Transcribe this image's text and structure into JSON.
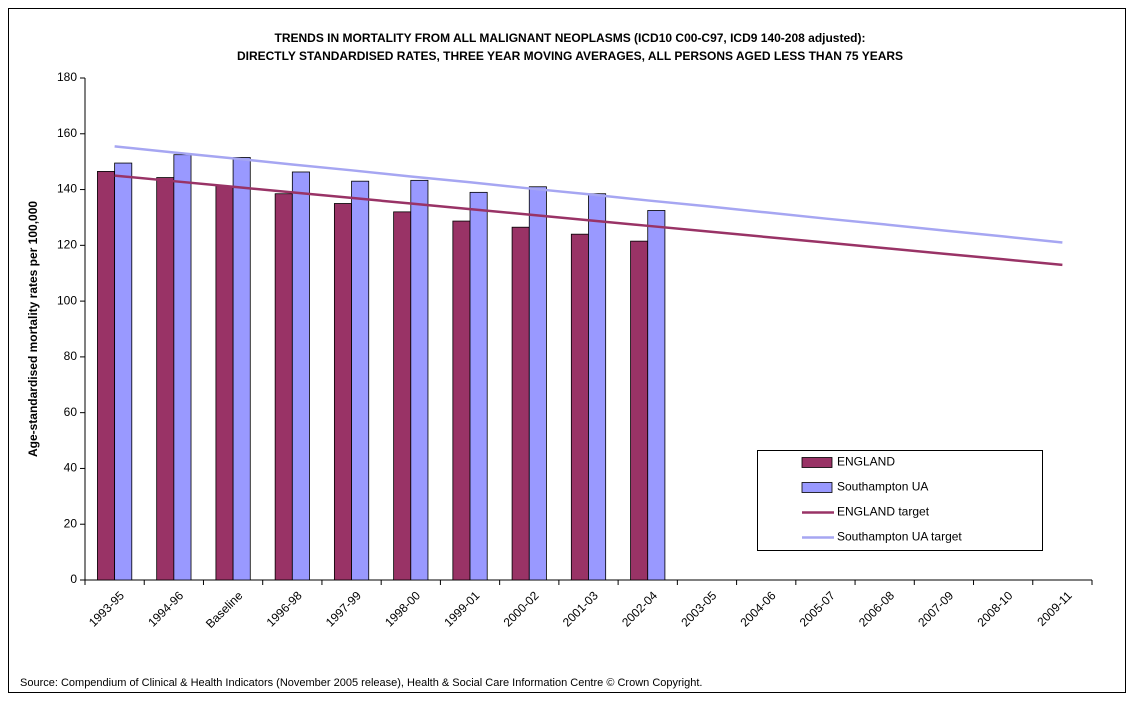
{
  "chart_data": {
    "type": "bar",
    "title": "TRENDS IN MORTALITY FROM ALL MALIGNANT NEOPLASMS (ICD10 C00-C97, ICD9 140-208 adjusted):",
    "subtitle": "DIRECTLY STANDARDISED RATES, THREE YEAR MOVING AVERAGES, ALL PERSONS AGED  LESS THAN 75 YEARS",
    "y_label": "Age-standardised mortality rates per 100,000",
    "source": "Source: Compendium of Clinical & Health Indicators (November 2005 release), Health & Social Care Information Centre © Crown Copyright.",
    "categories": [
      "1993-95",
      "1994-96",
      "Baseline",
      "1996-98",
      "1997-99",
      "1998-00",
      "1999-01",
      "2000-02",
      "2001-03",
      "2002-04",
      "2003-05",
      "2004-06",
      "2005-07",
      "2006-08",
      "2007-09",
      "2008-10",
      "2009-11"
    ],
    "series": [
      {
        "name": "ENGLAND",
        "type": "bar",
        "color": "#993366",
        "values": [
          146.5,
          144.3,
          141.3,
          138.5,
          135,
          132,
          128.7,
          126.5,
          124,
          121.5,
          null,
          null,
          null,
          null,
          null,
          null,
          null
        ]
      },
      {
        "name": "Southampton UA",
        "type": "bar",
        "color": "#9999ff",
        "values": [
          149.5,
          152.5,
          151.5,
          146.3,
          143,
          143.3,
          139,
          141,
          138.5,
          132.5,
          null,
          null,
          null,
          null,
          null,
          null,
          null
        ]
      },
      {
        "name": "ENGLAND target",
        "type": "line",
        "color": "#993366",
        "values": [
          145,
          143,
          141,
          139,
          137,
          135,
          133,
          131,
          129,
          127,
          125,
          123,
          121,
          119,
          117,
          115,
          113
        ]
      },
      {
        "name": "Southampton UA target",
        "type": "line",
        "color": "#a6a6f2",
        "values": [
          155.5,
          153.3,
          151.2,
          149.0,
          146.9,
          144.7,
          142.6,
          140.4,
          138.3,
          136.1,
          134.0,
          131.8,
          129.6,
          127.5,
          125.3,
          123.2,
          121.0
        ]
      }
    ],
    "ylim": [
      0,
      180
    ],
    "yticks": [
      0,
      20,
      40,
      60,
      80,
      100,
      120,
      140,
      160,
      180
    ]
  }
}
